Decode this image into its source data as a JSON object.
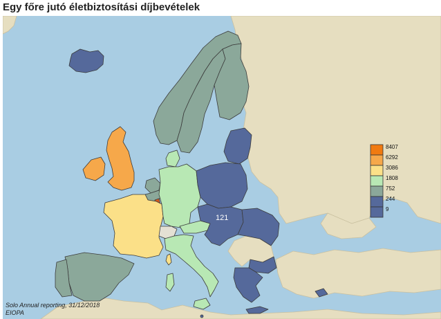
{
  "title": "Egy főre jutó életbiztosítási díjbevételek",
  "legend": {
    "items": [
      {
        "label": "8407",
        "color": "#f07a10"
      },
      {
        "label": "6292",
        "color": "#f6a84a"
      },
      {
        "label": "3086",
        "color": "#fbe088"
      },
      {
        "label": "1808",
        "color": "#b8e8b4"
      },
      {
        "label": "752",
        "color": "#8ba89a"
      },
      {
        "label": "244",
        "color": "#55699b"
      },
      {
        "label": "9",
        "color": "#55699b"
      }
    ]
  },
  "map": {
    "sea_color": "#a9cde3",
    "land_color": "#e6dec0",
    "switzerland_color": "#e4e0d4",
    "luxembourg_color": "#d35a1e",
    "label_121": "121"
  },
  "source": {
    "line1": "Solo Annual reporting, 31/12/2018",
    "line2": "EIOPA"
  }
}
